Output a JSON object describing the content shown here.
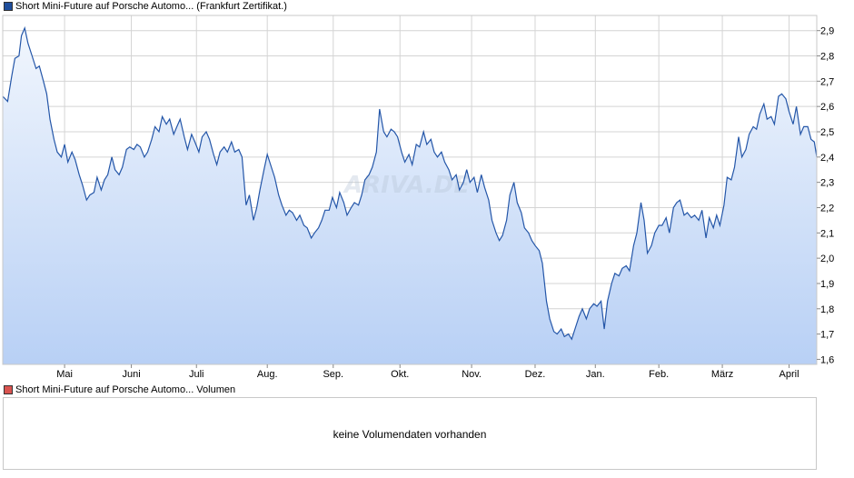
{
  "legend": {
    "price_title": "Short Mini-Future auf Porsche Automo... (Frankfurt Zertifikat.)",
    "price_color": "#1f4e9c",
    "volume_title": "Short Mini-Future auf Porsche Automo... Volumen",
    "volume_color": "#d9534f"
  },
  "volume_panel": {
    "message": "keine Volumendaten vorhanden"
  },
  "watermark": "ARIVA.DE",
  "chart_data": {
    "type": "area",
    "y_axis_position": "right",
    "ylim": [
      1.58,
      2.96
    ],
    "yticks": [
      1.6,
      1.7,
      1.8,
      1.9,
      2.0,
      2.1,
      2.2,
      2.3,
      2.4,
      2.5,
      2.6,
      2.7,
      2.8,
      2.9
    ],
    "ytick_labels": [
      "1,6",
      "1,7",
      "1,8",
      "1,9",
      "2,0",
      "2,1",
      "2,2",
      "2,3",
      "2,4",
      "2,5",
      "2,6",
      "2,7",
      "2,8",
      "2,9"
    ],
    "xlim": [
      0,
      100
    ],
    "xticks": [
      {
        "label": "Mai",
        "x": 7.6
      },
      {
        "label": "Juni",
        "x": 15.8
      },
      {
        "label": "Juli",
        "x": 23.8
      },
      {
        "label": "Aug.",
        "x": 32.5
      },
      {
        "label": "Sep.",
        "x": 40.6
      },
      {
        "label": "Okt.",
        "x": 48.8
      },
      {
        "label": "Nov.",
        "x": 57.6
      },
      {
        "label": "Dez.",
        "x": 65.4
      },
      {
        "label": "Jan.",
        "x": 72.8
      },
      {
        "label": "Feb.",
        "x": 80.6
      },
      {
        "label": "März",
        "x": 88.4
      },
      {
        "label": "April",
        "x": 96.6
      }
    ],
    "grid": true,
    "colors": {
      "line": "#2456a8",
      "area_top": "#f1f6fd",
      "area_bottom": "#b8d0f5",
      "grid": "#d4d4d4"
    },
    "series": [
      {
        "values": [
          [
            0.0,
            2.64
          ],
          [
            0.6,
            2.62
          ],
          [
            1.1,
            2.72
          ],
          [
            1.5,
            2.79
          ],
          [
            2.0,
            2.8
          ],
          [
            2.3,
            2.88
          ],
          [
            2.7,
            2.91
          ],
          [
            3.1,
            2.85
          ],
          [
            3.6,
            2.8
          ],
          [
            4.1,
            2.75
          ],
          [
            4.5,
            2.76
          ],
          [
            5.0,
            2.7
          ],
          [
            5.4,
            2.65
          ],
          [
            5.8,
            2.55
          ],
          [
            6.3,
            2.47
          ],
          [
            6.7,
            2.42
          ],
          [
            7.2,
            2.4
          ],
          [
            7.6,
            2.45
          ],
          [
            8.0,
            2.38
          ],
          [
            8.5,
            2.42
          ],
          [
            8.9,
            2.39
          ],
          [
            9.4,
            2.33
          ],
          [
            9.8,
            2.29
          ],
          [
            10.3,
            2.23
          ],
          [
            10.7,
            2.25
          ],
          [
            11.2,
            2.26
          ],
          [
            11.6,
            2.32
          ],
          [
            12.1,
            2.27
          ],
          [
            12.5,
            2.31
          ],
          [
            12.9,
            2.33
          ],
          [
            13.4,
            2.4
          ],
          [
            13.8,
            2.35
          ],
          [
            14.3,
            2.33
          ],
          [
            14.7,
            2.36
          ],
          [
            15.2,
            2.43
          ],
          [
            15.6,
            2.44
          ],
          [
            16.1,
            2.43
          ],
          [
            16.5,
            2.45
          ],
          [
            16.9,
            2.44
          ],
          [
            17.4,
            2.4
          ],
          [
            17.8,
            2.42
          ],
          [
            18.3,
            2.47
          ],
          [
            18.7,
            2.52
          ],
          [
            19.2,
            2.5
          ],
          [
            19.6,
            2.56
          ],
          [
            20.1,
            2.53
          ],
          [
            20.5,
            2.55
          ],
          [
            21.0,
            2.49
          ],
          [
            21.4,
            2.52
          ],
          [
            21.8,
            2.55
          ],
          [
            22.3,
            2.48
          ],
          [
            22.7,
            2.43
          ],
          [
            23.2,
            2.49
          ],
          [
            23.6,
            2.46
          ],
          [
            24.1,
            2.42
          ],
          [
            24.5,
            2.48
          ],
          [
            25.0,
            2.5
          ],
          [
            25.4,
            2.47
          ],
          [
            25.9,
            2.41
          ],
          [
            26.3,
            2.37
          ],
          [
            26.7,
            2.42
          ],
          [
            27.2,
            2.44
          ],
          [
            27.6,
            2.42
          ],
          [
            28.1,
            2.46
          ],
          [
            28.5,
            2.42
          ],
          [
            29.0,
            2.43
          ],
          [
            29.4,
            2.4
          ],
          [
            29.9,
            2.21
          ],
          [
            30.3,
            2.25
          ],
          [
            30.8,
            2.15
          ],
          [
            31.2,
            2.2
          ],
          [
            31.6,
            2.27
          ],
          [
            32.1,
            2.35
          ],
          [
            32.5,
            2.41
          ],
          [
            33.0,
            2.36
          ],
          [
            33.4,
            2.32
          ],
          [
            33.9,
            2.25
          ],
          [
            34.3,
            2.21
          ],
          [
            34.8,
            2.17
          ],
          [
            35.2,
            2.19
          ],
          [
            35.6,
            2.18
          ],
          [
            36.1,
            2.15
          ],
          [
            36.5,
            2.17
          ],
          [
            37.0,
            2.13
          ],
          [
            37.4,
            2.12
          ],
          [
            37.9,
            2.08
          ],
          [
            38.3,
            2.1
          ],
          [
            38.8,
            2.12
          ],
          [
            39.2,
            2.15
          ],
          [
            39.6,
            2.19
          ],
          [
            40.1,
            2.19
          ],
          [
            40.5,
            2.24
          ],
          [
            41.0,
            2.2
          ],
          [
            41.4,
            2.26
          ],
          [
            41.9,
            2.22
          ],
          [
            42.3,
            2.17
          ],
          [
            42.8,
            2.2
          ],
          [
            43.2,
            2.22
          ],
          [
            43.7,
            2.21
          ],
          [
            44.1,
            2.25
          ],
          [
            44.5,
            2.31
          ],
          [
            45.0,
            2.33
          ],
          [
            45.4,
            2.36
          ],
          [
            45.9,
            2.42
          ],
          [
            46.3,
            2.59
          ],
          [
            46.8,
            2.5
          ],
          [
            47.2,
            2.48
          ],
          [
            47.7,
            2.51
          ],
          [
            48.1,
            2.5
          ],
          [
            48.5,
            2.48
          ],
          [
            49.0,
            2.42
          ],
          [
            49.4,
            2.38
          ],
          [
            49.9,
            2.41
          ],
          [
            50.3,
            2.37
          ],
          [
            50.8,
            2.45
          ],
          [
            51.2,
            2.44
          ],
          [
            51.7,
            2.5
          ],
          [
            52.1,
            2.45
          ],
          [
            52.6,
            2.47
          ],
          [
            53.0,
            2.42
          ],
          [
            53.4,
            2.4
          ],
          [
            53.9,
            2.42
          ],
          [
            54.3,
            2.38
          ],
          [
            54.8,
            2.35
          ],
          [
            55.2,
            2.31
          ],
          [
            55.7,
            2.33
          ],
          [
            56.1,
            2.27
          ],
          [
            56.6,
            2.3
          ],
          [
            57.0,
            2.35
          ],
          [
            57.4,
            2.3
          ],
          [
            57.9,
            2.32
          ],
          [
            58.3,
            2.26
          ],
          [
            58.8,
            2.33
          ],
          [
            59.2,
            2.28
          ],
          [
            59.7,
            2.23
          ],
          [
            60.1,
            2.15
          ],
          [
            60.6,
            2.1
          ],
          [
            61.0,
            2.07
          ],
          [
            61.4,
            2.09
          ],
          [
            61.9,
            2.15
          ],
          [
            62.3,
            2.25
          ],
          [
            62.8,
            2.3
          ],
          [
            63.2,
            2.22
          ],
          [
            63.7,
            2.18
          ],
          [
            64.1,
            2.12
          ],
          [
            64.6,
            2.1
          ],
          [
            65.0,
            2.07
          ],
          [
            65.4,
            2.05
          ],
          [
            65.9,
            2.03
          ],
          [
            66.3,
            1.98
          ],
          [
            66.8,
            1.83
          ],
          [
            67.2,
            1.76
          ],
          [
            67.7,
            1.71
          ],
          [
            68.1,
            1.7
          ],
          [
            68.6,
            1.72
          ],
          [
            69.0,
            1.69
          ],
          [
            69.5,
            1.7
          ],
          [
            69.9,
            1.68
          ],
          [
            70.3,
            1.72
          ],
          [
            70.8,
            1.77
          ],
          [
            71.2,
            1.8
          ],
          [
            71.7,
            1.76
          ],
          [
            72.1,
            1.8
          ],
          [
            72.6,
            1.82
          ],
          [
            73.0,
            1.81
          ],
          [
            73.5,
            1.83
          ],
          [
            73.9,
            1.72
          ],
          [
            74.3,
            1.83
          ],
          [
            74.8,
            1.9
          ],
          [
            75.2,
            1.94
          ],
          [
            75.7,
            1.93
          ],
          [
            76.1,
            1.96
          ],
          [
            76.6,
            1.97
          ],
          [
            77.0,
            1.95
          ],
          [
            77.5,
            2.05
          ],
          [
            77.9,
            2.1
          ],
          [
            78.4,
            2.22
          ],
          [
            78.8,
            2.15
          ],
          [
            79.2,
            2.02
          ],
          [
            79.7,
            2.05
          ],
          [
            80.1,
            2.1
          ],
          [
            80.6,
            2.13
          ],
          [
            81.0,
            2.13
          ],
          [
            81.5,
            2.16
          ],
          [
            81.9,
            2.1
          ],
          [
            82.4,
            2.2
          ],
          [
            82.8,
            2.22
          ],
          [
            83.2,
            2.23
          ],
          [
            83.7,
            2.17
          ],
          [
            84.1,
            2.18
          ],
          [
            84.6,
            2.16
          ],
          [
            85.0,
            2.17
          ],
          [
            85.5,
            2.15
          ],
          [
            85.9,
            2.19
          ],
          [
            86.4,
            2.08
          ],
          [
            86.8,
            2.16
          ],
          [
            87.3,
            2.12
          ],
          [
            87.7,
            2.17
          ],
          [
            88.1,
            2.13
          ],
          [
            88.6,
            2.21
          ],
          [
            89.0,
            2.32
          ],
          [
            89.5,
            2.31
          ],
          [
            89.9,
            2.36
          ],
          [
            90.4,
            2.48
          ],
          [
            90.8,
            2.4
          ],
          [
            91.3,
            2.43
          ],
          [
            91.7,
            2.49
          ],
          [
            92.2,
            2.52
          ],
          [
            92.6,
            2.51
          ],
          [
            93.0,
            2.57
          ],
          [
            93.5,
            2.61
          ],
          [
            93.9,
            2.55
          ],
          [
            94.4,
            2.56
          ],
          [
            94.8,
            2.53
          ],
          [
            95.3,
            2.64
          ],
          [
            95.7,
            2.65
          ],
          [
            96.2,
            2.63
          ],
          [
            96.6,
            2.58
          ],
          [
            97.1,
            2.53
          ],
          [
            97.5,
            2.6
          ],
          [
            98.0,
            2.49
          ],
          [
            98.4,
            2.52
          ],
          [
            98.9,
            2.52
          ],
          [
            99.3,
            2.47
          ],
          [
            99.7,
            2.46
          ],
          [
            100.0,
            2.4
          ]
        ]
      }
    ]
  }
}
